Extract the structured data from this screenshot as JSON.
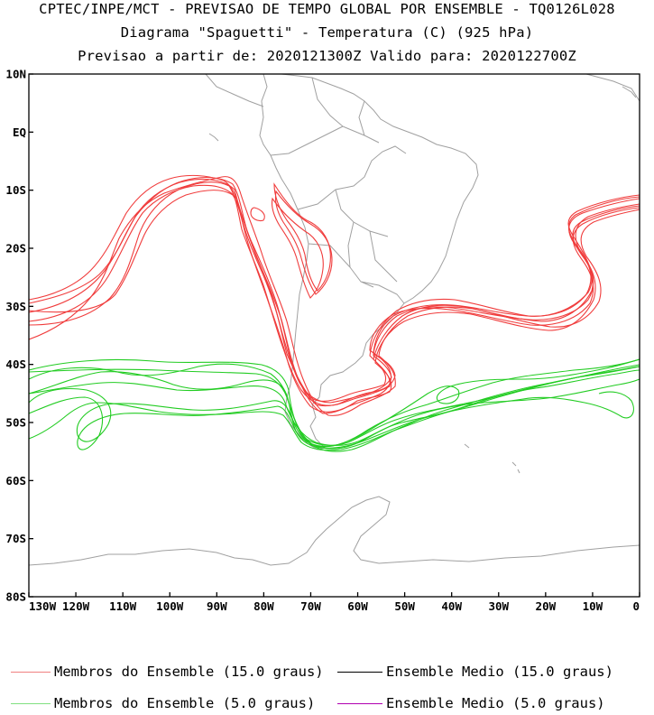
{
  "header": {
    "line1": "CPTEC/INPE/MCT - PREVISAO DE TEMPO GLOBAL POR ENSEMBLE - TQ0126L028",
    "line2": "Diagrama \"Spaguetti\" - Temperatura (C) (925 hPa)",
    "line3": "Previsao a partir de: 2020121300Z  Valido para: 2020122700Z"
  },
  "axes": {
    "lat_labels": [
      "10N",
      "EQ",
      "10S",
      "20S",
      "30S",
      "40S",
      "50S",
      "60S",
      "70S",
      "80S"
    ],
    "lon_labels": [
      "130W",
      "120W",
      "110W",
      "100W",
      "90W",
      "80W",
      "70W",
      "60W",
      "50W",
      "40W",
      "30W",
      "20W",
      "10W",
      "0"
    ],
    "lat_range": [
      -80,
      10
    ],
    "lon_range": [
      -130,
      0
    ]
  },
  "legend": {
    "items": [
      {
        "label": "Membros do Ensemble (15.0 graus)",
        "color": "#f08080"
      },
      {
        "label": "Ensemble Medio (15.0 graus)",
        "color": "#000000"
      },
      {
        "label": "Membros do Ensemble (5.0 graus)",
        "color": "#80e080"
      },
      {
        "label": "Ensemble Medio (5.0 graus)",
        "color": "#b000b0"
      }
    ]
  },
  "colors": {
    "member_15": "#f03c3c",
    "member_5": "#22cc22",
    "coast": "#a0a0a0"
  }
}
